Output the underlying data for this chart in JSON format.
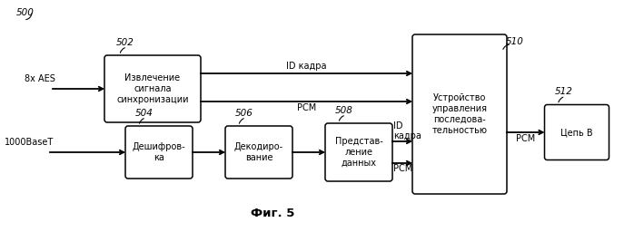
{
  "title": "Фиг. 5",
  "background_color": "#ffffff",
  "label_500": "500",
  "label_502": "502",
  "label_504": "504",
  "label_506": "506",
  "label_508": "508",
  "label_510": "510",
  "label_512": "512",
  "box_502_text": "Извлечение\nсигнала\nсинхронизации",
  "box_504_text": "Дешифров-\nка",
  "box_506_text": "Декодиро-\nвание",
  "box_508_text": "Представ-\nление\nданных",
  "box_510_text": "Устройство\nуправления\nпоследова-\nтельностью",
  "box_512_text": "Цепь B",
  "input_top": "8x AES",
  "input_bot": "1000BaseT",
  "arrow_id_top": "ID кадра",
  "arrow_pcm_top": "РСМ",
  "arrow_id_bot": "ID\nкадра",
  "arrow_pcm_bot": "РСМ",
  "arrow_pcm_right": "РСМ",
  "font_size": 7,
  "label_font_size": 7.5
}
